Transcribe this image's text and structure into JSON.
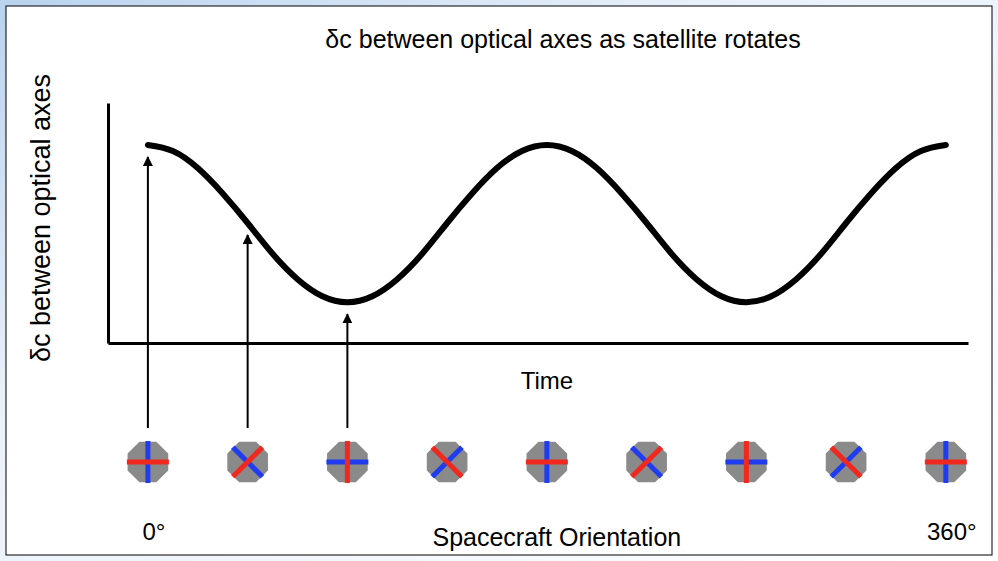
{
  "chart_data": {
    "type": "line",
    "title": "δc between optical axes as satellite rotates",
    "x_label": "Time",
    "y_label": "δc between optical axes",
    "x": [
      0,
      11.25,
      22.5,
      33.75,
      45,
      56.25,
      67.5,
      78.75,
      90,
      101.25,
      112.5,
      123.75,
      135,
      146.25,
      157.5,
      168.75,
      180,
      191.25,
      202.5,
      213.75,
      225,
      236.25,
      247.5,
      258.75,
      270,
      281.25,
      292.5,
      303.75,
      315,
      326.25,
      337.5,
      348.75,
      360
    ],
    "values": [
      0.825,
      0.8,
      0.729,
      0.623,
      0.5,
      0.372,
      0.266,
      0.195,
      0.17,
      0.195,
      0.266,
      0.372,
      0.5,
      0.623,
      0.729,
      0.8,
      0.825,
      0.8,
      0.729,
      0.623,
      0.5,
      0.372,
      0.266,
      0.195,
      0.17,
      0.195,
      0.266,
      0.372,
      0.5,
      0.623,
      0.729,
      0.8,
      0.825
    ],
    "color": "#000000",
    "xlim": [
      -18,
      370
    ],
    "ylim": [
      0,
      1
    ],
    "xticks": [],
    "yticks": [],
    "tick_labels": false,
    "grid": false,
    "orientations": [
      0,
      45,
      90,
      135,
      180,
      225,
      270,
      315,
      360
    ],
    "arrows": [
      0,
      45,
      90
    ],
    "orientation_title": "Spacecraft Orientation",
    "orientation_labels": [
      {
        "value": 0,
        "label": "0°"
      },
      {
        "value": 360,
        "label": "360°"
      }
    ]
  }
}
